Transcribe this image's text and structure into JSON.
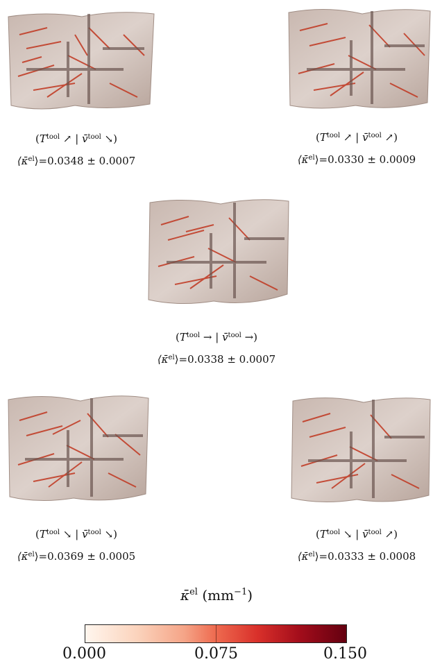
{
  "panels": [
    {
      "id": "p1",
      "label_T": "T",
      "label_sup": "tool",
      "arrow_T": "↗",
      "v": "v̄",
      "arrow_v": "↘",
      "mean": "⟨κ̄",
      "mean_sup": "el",
      "mean_tail": "⟩=0.0348 ± 0.0007"
    },
    {
      "id": "p2",
      "label_T": "T",
      "label_sup": "tool",
      "arrow_T": "↗",
      "v": "v̄",
      "arrow_v": "↗",
      "mean": "⟨κ̄",
      "mean_sup": "el",
      "mean_tail": "⟩=0.0330 ± 0.0009"
    },
    {
      "id": "p3",
      "label_T": "T",
      "label_sup": "tool",
      "arrow_T": "→",
      "v": "v̄",
      "arrow_v": "→",
      "mean": "⟨κ̄",
      "mean_sup": "el",
      "mean_tail": "⟩=0.0338 ± 0.0007"
    },
    {
      "id": "p4",
      "label_T": "T",
      "label_sup": "tool",
      "arrow_T": "↘",
      "v": "v̄",
      "arrow_v": "↘",
      "mean": "⟨κ̄",
      "mean_sup": "el",
      "mean_tail": "⟩=0.0369 ± 0.0005"
    },
    {
      "id": "p5",
      "label_T": "T",
      "label_sup": "tool",
      "arrow_T": "↘",
      "v": "v̄",
      "arrow_v": "↗",
      "mean": "⟨κ̄",
      "mean_sup": "el",
      "mean_tail": "⟩=0.0333 ± 0.0008"
    }
  ],
  "colorbar": {
    "symbol": "κ̄",
    "symbol_sup": "el",
    "unit": "(mm",
    "unit_sup": "−1",
    "unit_close": ")",
    "ticks": [
      "0.000",
      "0.075",
      "0.150"
    ]
  }
}
